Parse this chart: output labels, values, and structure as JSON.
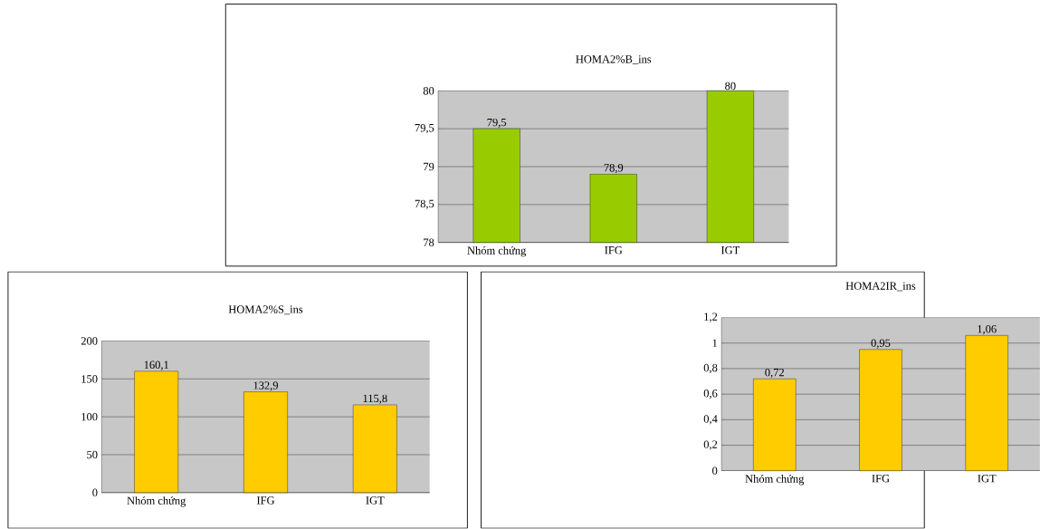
{
  "chart_data": [
    {
      "type": "bar",
      "title": "HOMA2%B_ins",
      "categories": [
        "Nhóm chứng",
        "IFG",
        "IGT"
      ],
      "values": [
        79.5,
        78.9,
        80
      ],
      "value_labels": [
        "79,5",
        "78,9",
        "80"
      ],
      "color": "#99cc00",
      "ylim": [
        78,
        80
      ],
      "yticks": [
        78,
        {
          "value": 78.5,
          "label": "78,5"
        },
        79,
        {
          "value": 79.5,
          "label": "79,5"
        },
        80
      ],
      "grid": "y"
    },
    {
      "type": "bar",
      "title": "HOMA2%S_ins",
      "categories": [
        "Nhóm chứng",
        "IFG",
        "IGT"
      ],
      "values": [
        160.1,
        132.9,
        115.8
      ],
      "value_labels": [
        "160,1",
        "132,9",
        "115,8"
      ],
      "color": "#ffcc00",
      "ylim": [
        0,
        200
      ],
      "yticks": [
        0,
        50,
        100,
        150,
        200
      ],
      "grid": "y"
    },
    {
      "type": "bar",
      "title": "HOMA2IR_ins",
      "categories": [
        "Nhóm chứng",
        "IFG",
        "IGT"
      ],
      "values": [
        0.72,
        0.95,
        1.06
      ],
      "value_labels": [
        "0,72",
        "0,95",
        "1,06"
      ],
      "color": "#ffcc00",
      "ylim": [
        0,
        1.2
      ],
      "yticks": [
        0,
        {
          "value": 0.2,
          "label": "0,2"
        },
        {
          "value": 0.4,
          "label": "0,4"
        },
        {
          "value": 0.6,
          "label": "0,6"
        },
        {
          "value": 0.8,
          "label": "0,8"
        },
        1,
        {
          "value": 1.2,
          "label": "1,2"
        }
      ],
      "grid": "y"
    }
  ]
}
